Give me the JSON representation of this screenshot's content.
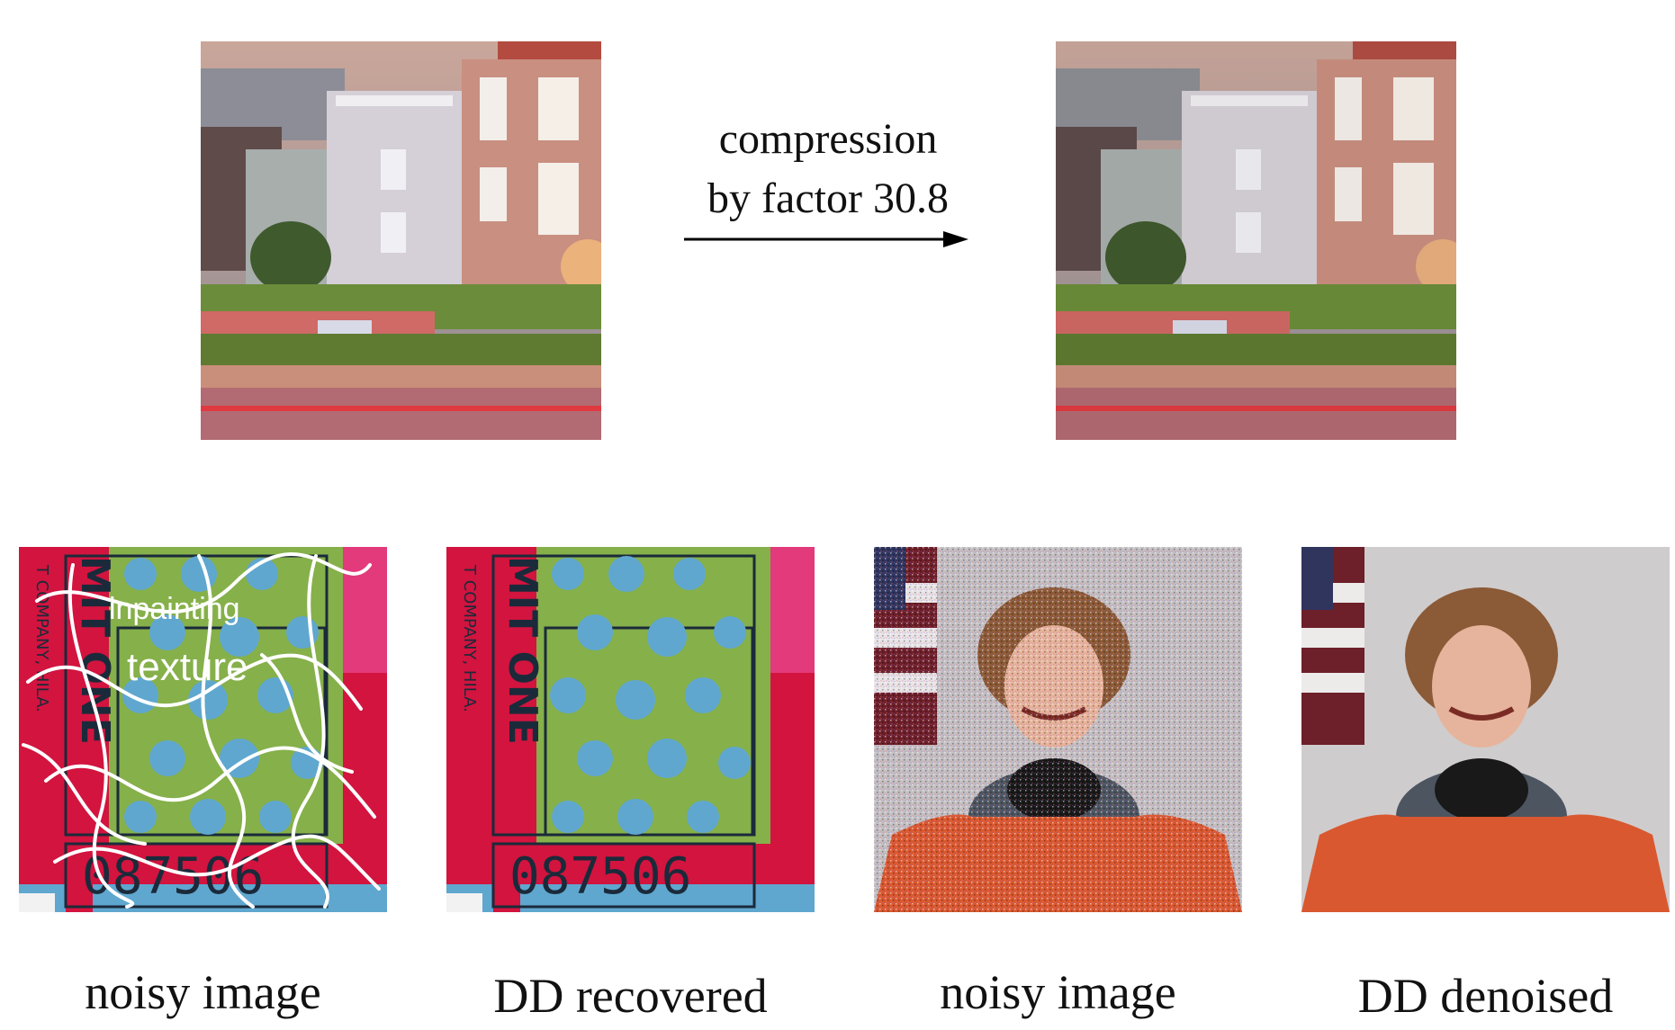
{
  "top": {
    "arrow_label_line1": "compression",
    "arrow_label_line2": "by factor 30.8"
  },
  "inpainting_overlay": {
    "word1": "inpainting",
    "word2": "texture"
  },
  "stamp": {
    "number": "087506",
    "side_text": "T COMPANY, HILA.",
    "vertical_word": "MIT ONE"
  },
  "captions": {
    "c1": "noisy image",
    "c2": "DD recovered",
    "c3": "noisy image",
    "c4": "DD denoised"
  },
  "colors": {
    "stamp_red": "#d2143f",
    "stamp_blue": "#5fa7cf",
    "stamp_green": "#86b04a",
    "suit_orange": "#d9582f"
  }
}
